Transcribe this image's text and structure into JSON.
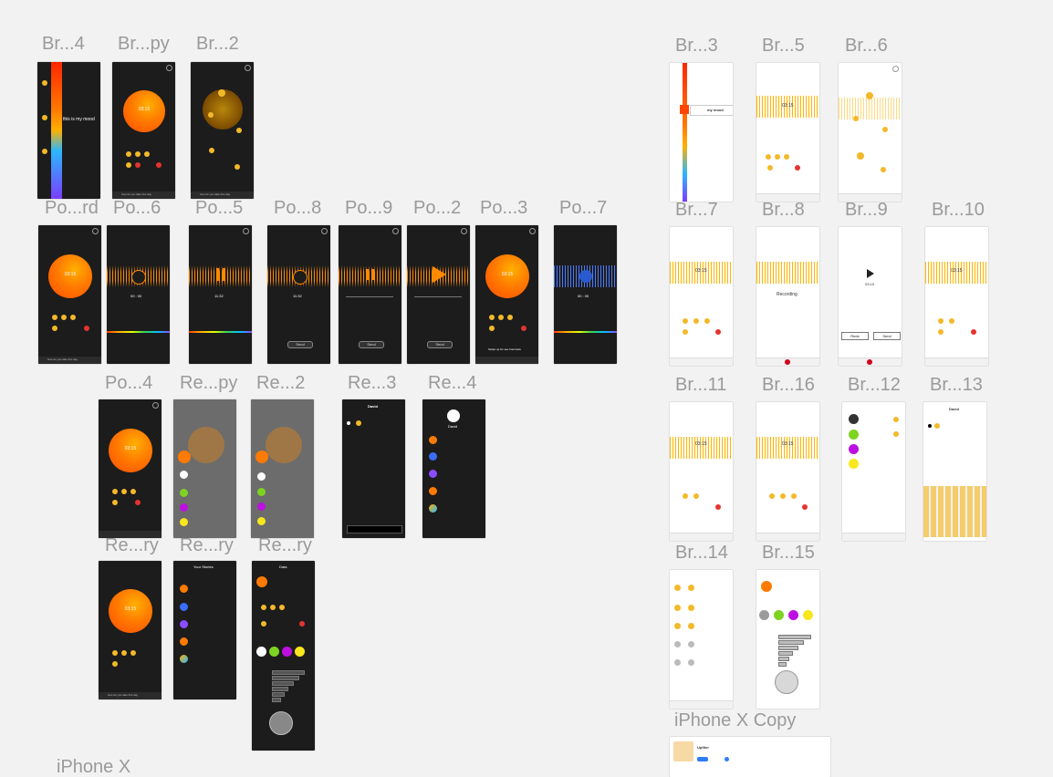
{
  "labels": {
    "br4": "Br...4",
    "brpy": "Br...py",
    "br2": "Br...2",
    "br3": "Br...3",
    "br5": "Br...5",
    "br6": "Br...6",
    "pord": "Po...rd",
    "po6": "Po...6",
    "po5": "Po...5",
    "po8": "Po...8",
    "po9": "Po...9",
    "po2": "Po...2",
    "po3": "Po...3",
    "po7": "Po...7",
    "br7": "Br...7",
    "br8": "Br...8",
    "br9": "Br...9",
    "br10": "Br...10",
    "po4": "Po...4",
    "repy": "Re...py",
    "re2": "Re...2",
    "re3": "Re...3",
    "re4": "Re...4",
    "br11": "Br...11",
    "br16": "Br...16",
    "br12": "Br...12",
    "br13": "Br...13",
    "rery1": "Re...ry",
    "rery2": "Re...ry",
    "rery3": "Re...ry",
    "br14": "Br...14",
    "br15": "Br...15",
    "iphonexcopy": "iPhone X Copy",
    "iphonex": "iPhone X"
  },
  "screens": {
    "time": "03:15",
    "timer_zero": "00 : 00",
    "timer_play": "11:32",
    "mood": "this is my mood",
    "mood_short": "my mood",
    "send": "Send",
    "redo": "Redo",
    "recording": "Recording",
    "david": "David",
    "your_stories": "Your Stories",
    "data": "Data",
    "upfiter": "Upfiter",
    "footer_text": "how do you take this day",
    "swipe_hint": "Swipe up for see how feels"
  },
  "colors": {
    "accent_orange": "#ff7a00",
    "accent_red": "#e3342f",
    "response_white": "#ffffff",
    "response_green": "#7ed321",
    "response_purple": "#bd10e0",
    "response_yellow": "#f8e71c",
    "response_gray": "#9b9b9b"
  }
}
